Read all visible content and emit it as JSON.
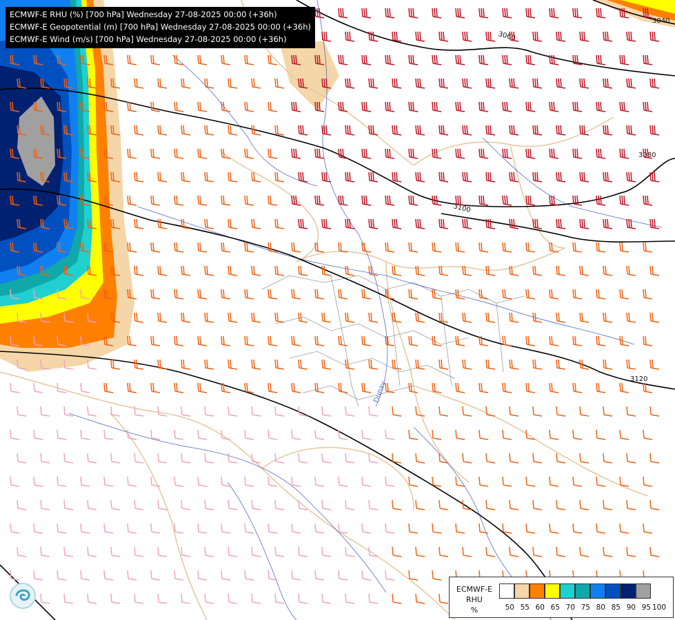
{
  "header": {
    "line1": "ECMWF-E RHU (%) [700 hPa] Wednesday 27-08-2025 00:00 (+36h)",
    "line2": "ECMWF-E Geopotential (m) [700 hPa] Wednesday 27-08-2025 00:00 (+36h)",
    "line3": "ECMWF-E Wind (m/s) [700 hPa] Wednesday 27-08-2025 00:00 (+36h)"
  },
  "contours": {
    "c3040": "3040",
    "c3060": "3060",
    "c3080": "3080",
    "c3100": "3100",
    "c3120": "3120"
  },
  "map_labels": {
    "river": "Dunav"
  },
  "colorbar": {
    "title_line1": "ECMWF-E",
    "title_line2": "RHU",
    "unit": "%",
    "colors": [
      "#ffffff",
      "#f5d6a8",
      "#ff8000",
      "#ffff00",
      "#20d0d0",
      "#10a8a8",
      "#1080f0",
      "#0050c0",
      "#002070",
      "#a0a0a0",
      "#606060"
    ],
    "ticks": [
      "50",
      "55",
      "60",
      "65",
      "70",
      "75",
      "80",
      "85",
      "90",
      "95",
      "100"
    ]
  },
  "wind_colors": {
    "calm": "#f4a0c0",
    "moderate": "#f06010",
    "strong": "#c01020"
  }
}
